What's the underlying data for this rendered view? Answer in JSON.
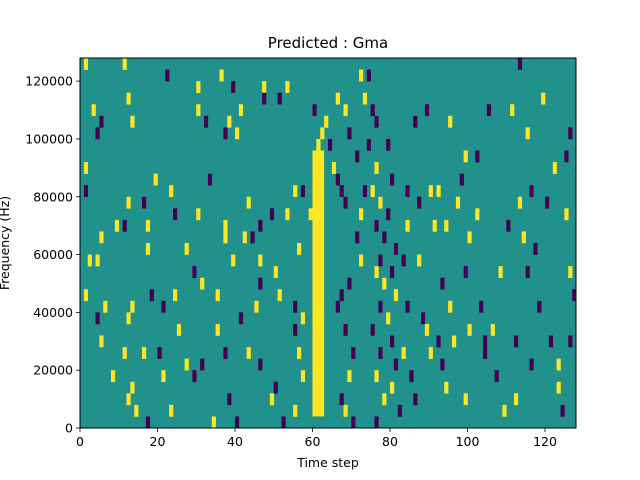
{
  "chart_data": {
    "type": "heatmap",
    "title": "Predicted : Gma",
    "xlabel": "Time step",
    "ylabel": "Frequency (Hz)",
    "xlim": [
      0,
      128
    ],
    "ylim": [
      0,
      128000
    ],
    "x_ticks": [
      0,
      20,
      40,
      60,
      80,
      100,
      120
    ],
    "x_tick_labels": [
      "0",
      "20",
      "40",
      "60",
      "80",
      "100",
      "120"
    ],
    "y_ticks": [
      0,
      20000,
      40000,
      60000,
      80000,
      100000,
      120000
    ],
    "y_tick_labels": [
      "0",
      "20000",
      "40000",
      "60000",
      "80000",
      "100000",
      "120000"
    ],
    "n_time_steps": 128,
    "n_frequency_bins": 32,
    "colormap": {
      "low": "#440154",
      "mid": "#21918c",
      "high": "#fde725"
    },
    "background_value": "mid",
    "grid": false,
    "cells": [
      {
        "x": 1,
        "y": 126000,
        "v": "high"
      },
      {
        "x": 11,
        "y": 126000,
        "v": "high"
      },
      {
        "x": 22,
        "y": 122000,
        "v": "low"
      },
      {
        "x": 36,
        "y": 122000,
        "v": "high"
      },
      {
        "x": 30,
        "y": 118000,
        "v": "high"
      },
      {
        "x": 39,
        "y": 118000,
        "v": "low"
      },
      {
        "x": 47,
        "y": 118000,
        "v": "high"
      },
      {
        "x": 12,
        "y": 114000,
        "v": "high"
      },
      {
        "x": 3,
        "y": 110000,
        "v": "high"
      },
      {
        "x": 5,
        "y": 106000,
        "v": "low"
      },
      {
        "x": 4,
        "y": 102000,
        "v": "low"
      },
      {
        "x": 13,
        "y": 106000,
        "v": "high"
      },
      {
        "x": 30,
        "y": 110000,
        "v": "high"
      },
      {
        "x": 32,
        "y": 106000,
        "v": "low"
      },
      {
        "x": 38,
        "y": 106000,
        "v": "high"
      },
      {
        "x": 41,
        "y": 110000,
        "v": "high"
      },
      {
        "x": 40,
        "y": 102000,
        "v": "high"
      },
      {
        "x": 37,
        "y": 102000,
        "v": "low"
      },
      {
        "x": 47,
        "y": 114000,
        "v": "low"
      },
      {
        "x": 51,
        "y": 114000,
        "v": "low"
      },
      {
        "x": 53,
        "y": 118000,
        "v": "high"
      },
      {
        "x": 1,
        "y": 90000,
        "v": "high"
      },
      {
        "x": 1,
        "y": 82000,
        "v": "low"
      },
      {
        "x": 12,
        "y": 78000,
        "v": "high"
      },
      {
        "x": 11,
        "y": 70000,
        "v": "low"
      },
      {
        "x": 5,
        "y": 66000,
        "v": "high"
      },
      {
        "x": 9,
        "y": 70000,
        "v": "high"
      },
      {
        "x": 17,
        "y": 70000,
        "v": "high"
      },
      {
        "x": 16,
        "y": 78000,
        "v": "low"
      },
      {
        "x": 23,
        "y": 82000,
        "v": "high"
      },
      {
        "x": 24,
        "y": 74000,
        "v": "low"
      },
      {
        "x": 19,
        "y": 86000,
        "v": "high"
      },
      {
        "x": 33,
        "y": 86000,
        "v": "low"
      },
      {
        "x": 30,
        "y": 74000,
        "v": "high"
      },
      {
        "x": 37,
        "y": 70000,
        "v": "high"
      },
      {
        "x": 43,
        "y": 78000,
        "v": "high"
      },
      {
        "x": 46,
        "y": 70000,
        "v": "low"
      },
      {
        "x": 49,
        "y": 74000,
        "v": "low"
      },
      {
        "x": 55,
        "y": 82000,
        "v": "high"
      },
      {
        "x": 53,
        "y": 74000,
        "v": "high"
      },
      {
        "x": 57,
        "y": 82000,
        "v": "low"
      },
      {
        "x": 59,
        "y": 74000,
        "v": "high"
      },
      {
        "x": 2,
        "y": 58000,
        "v": "high"
      },
      {
        "x": 4,
        "y": 58000,
        "v": "high"
      },
      {
        "x": 1,
        "y": 46000,
        "v": "high"
      },
      {
        "x": 4,
        "y": 38000,
        "v": "low"
      },
      {
        "x": 6,
        "y": 42000,
        "v": "high"
      },
      {
        "x": 12,
        "y": 38000,
        "v": "high"
      },
      {
        "x": 13,
        "y": 42000,
        "v": "high"
      },
      {
        "x": 17,
        "y": 62000,
        "v": "high"
      },
      {
        "x": 18,
        "y": 46000,
        "v": "low"
      },
      {
        "x": 21,
        "y": 42000,
        "v": "low"
      },
      {
        "x": 24,
        "y": 46000,
        "v": "high"
      },
      {
        "x": 27,
        "y": 62000,
        "v": "high"
      },
      {
        "x": 29,
        "y": 54000,
        "v": "low"
      },
      {
        "x": 31,
        "y": 50000,
        "v": "high"
      },
      {
        "x": 35,
        "y": 46000,
        "v": "high"
      },
      {
        "x": 37,
        "y": 66000,
        "v": "high"
      },
      {
        "x": 39,
        "y": 58000,
        "v": "high"
      },
      {
        "x": 42,
        "y": 66000,
        "v": "high"
      },
      {
        "x": 44,
        "y": 66000,
        "v": "low"
      },
      {
        "x": 46,
        "y": 58000,
        "v": "high"
      },
      {
        "x": 41,
        "y": 38000,
        "v": "low"
      },
      {
        "x": 45,
        "y": 42000,
        "v": "high"
      },
      {
        "x": 46,
        "y": 50000,
        "v": "low"
      },
      {
        "x": 50,
        "y": 54000,
        "v": "high"
      },
      {
        "x": 51,
        "y": 46000,
        "v": "high"
      },
      {
        "x": 56,
        "y": 62000,
        "v": "high"
      },
      {
        "x": 55,
        "y": 42000,
        "v": "low"
      },
      {
        "x": 57,
        "y": 38000,
        "v": "high"
      },
      {
        "x": 5,
        "y": 30000,
        "v": "high"
      },
      {
        "x": 11,
        "y": 26000,
        "v": "high"
      },
      {
        "x": 8,
        "y": 18000,
        "v": "high"
      },
      {
        "x": 13,
        "y": 14000,
        "v": "high"
      },
      {
        "x": 12,
        "y": 10000,
        "v": "high"
      },
      {
        "x": 14,
        "y": 6000,
        "v": "high"
      },
      {
        "x": 17,
        "y": 2000,
        "v": "low"
      },
      {
        "x": 16,
        "y": 26000,
        "v": "high"
      },
      {
        "x": 20,
        "y": 26000,
        "v": "low"
      },
      {
        "x": 21,
        "y": 18000,
        "v": "high"
      },
      {
        "x": 25,
        "y": 34000,
        "v": "high"
      },
      {
        "x": 27,
        "y": 22000,
        "v": "high"
      },
      {
        "x": 29,
        "y": 18000,
        "v": "low"
      },
      {
        "x": 31,
        "y": 22000,
        "v": "low"
      },
      {
        "x": 35,
        "y": 34000,
        "v": "high"
      },
      {
        "x": 37,
        "y": 26000,
        "v": "low"
      },
      {
        "x": 23,
        "y": 6000,
        "v": "high"
      },
      {
        "x": 34,
        "y": 2000,
        "v": "high"
      },
      {
        "x": 38,
        "y": 10000,
        "v": "low"
      },
      {
        "x": 43,
        "y": 26000,
        "v": "high"
      },
      {
        "x": 46,
        "y": 22000,
        "v": "low"
      },
      {
        "x": 49,
        "y": 10000,
        "v": "high"
      },
      {
        "x": 50,
        "y": 14000,
        "v": "low"
      },
      {
        "x": 55,
        "y": 34000,
        "v": "low"
      },
      {
        "x": 56,
        "y": 26000,
        "v": "high"
      },
      {
        "x": 52,
        "y": 2000,
        "v": "low"
      },
      {
        "x": 55,
        "y": 6000,
        "v": "high"
      },
      {
        "x": 57,
        "y": 18000,
        "v": "high"
      },
      {
        "x": 40,
        "y": 0,
        "v": "low"
      },
      {
        "x": 60,
        "y": 110000,
        "v": "low"
      },
      {
        "x": 62,
        "y": 102000,
        "v": "high"
      },
      {
        "x": 61,
        "y": 98000,
        "v": "high"
      },
      {
        "x": 63,
        "y": 106000,
        "v": "high"
      },
      {
        "x": 64,
        "y": 98000,
        "v": "low"
      },
      {
        "x": 65,
        "y": 90000,
        "v": "high"
      },
      {
        "x": 66,
        "y": 86000,
        "v": "low"
      },
      {
        "x": 67,
        "y": 82000,
        "v": "low"
      },
      {
        "x": 68,
        "y": 78000,
        "v": "low"
      },
      {
        "x": 66,
        "y": 114000,
        "v": "high"
      },
      {
        "x": 68,
        "y": 110000,
        "v": "high"
      },
      {
        "x": 69,
        "y": 102000,
        "v": "low"
      },
      {
        "x": 71,
        "y": 94000,
        "v": "low"
      },
      {
        "x": 73,
        "y": 82000,
        "v": "low"
      },
      {
        "x": 72,
        "y": 74000,
        "v": "high"
      },
      {
        "x": 71,
        "y": 66000,
        "v": "low"
      },
      {
        "x": 72,
        "y": 58000,
        "v": "high"
      },
      {
        "x": 69,
        "y": 50000,
        "v": "low"
      },
      {
        "x": 67,
        "y": 46000,
        "v": "low"
      },
      {
        "x": 66,
        "y": 42000,
        "v": "low"
      },
      {
        "x": 68,
        "y": 34000,
        "v": "low"
      },
      {
        "x": 70,
        "y": 26000,
        "v": "low"
      },
      {
        "x": 69,
        "y": 18000,
        "v": "high"
      },
      {
        "x": 67,
        "y": 10000,
        "v": "low"
      },
      {
        "x": 68,
        "y": 6000,
        "v": "high"
      },
      {
        "x": 70,
        "y": 2000,
        "v": "low"
      },
      {
        "x": 72,
        "y": 122000,
        "v": "high"
      },
      {
        "x": 74,
        "y": 122000,
        "v": "low"
      },
      {
        "x": 73,
        "y": 114000,
        "v": "high"
      },
      {
        "x": 75,
        "y": 110000,
        "v": "low"
      },
      {
        "x": 76,
        "y": 106000,
        "v": "low"
      },
      {
        "x": 74,
        "y": 98000,
        "v": "low"
      },
      {
        "x": 76,
        "y": 90000,
        "v": "high"
      },
      {
        "x": 75,
        "y": 82000,
        "v": "high"
      },
      {
        "x": 77,
        "y": 78000,
        "v": "high"
      },
      {
        "x": 76,
        "y": 70000,
        "v": "low"
      },
      {
        "x": 78,
        "y": 66000,
        "v": "low"
      },
      {
        "x": 77,
        "y": 58000,
        "v": "low"
      },
      {
        "x": 76,
        "y": 54000,
        "v": "high"
      },
      {
        "x": 78,
        "y": 50000,
        "v": "high"
      },
      {
        "x": 77,
        "y": 42000,
        "v": "low"
      },
      {
        "x": 75,
        "y": 34000,
        "v": "low"
      },
      {
        "x": 77,
        "y": 26000,
        "v": "low"
      },
      {
        "x": 76,
        "y": 18000,
        "v": "high"
      },
      {
        "x": 78,
        "y": 10000,
        "v": "high"
      },
      {
        "x": 76,
        "y": 2000,
        "v": "low"
      },
      {
        "x": 79,
        "y": 98000,
        "v": "low"
      },
      {
        "x": 80,
        "y": 86000,
        "v": "low"
      },
      {
        "x": 79,
        "y": 74000,
        "v": "low"
      },
      {
        "x": 81,
        "y": 62000,
        "v": "low"
      },
      {
        "x": 80,
        "y": 54000,
        "v": "low"
      },
      {
        "x": 81,
        "y": 46000,
        "v": "high"
      },
      {
        "x": 79,
        "y": 38000,
        "v": "high"
      },
      {
        "x": 80,
        "y": 30000,
        "v": "low"
      },
      {
        "x": 81,
        "y": 22000,
        "v": "low"
      },
      {
        "x": 80,
        "y": 14000,
        "v": "high"
      },
      {
        "x": 82,
        "y": 6000,
        "v": "low"
      },
      {
        "x": 84,
        "y": 82000,
        "v": "low"
      },
      {
        "x": 84,
        "y": 70000,
        "v": "high"
      },
      {
        "x": 83,
        "y": 58000,
        "v": "low"
      },
      {
        "x": 84,
        "y": 42000,
        "v": "low"
      },
      {
        "x": 83,
        "y": 26000,
        "v": "high"
      },
      {
        "x": 85,
        "y": 18000,
        "v": "low"
      },
      {
        "x": 86,
        "y": 106000,
        "v": "low"
      },
      {
        "x": 87,
        "y": 78000,
        "v": "low"
      },
      {
        "x": 87,
        "y": 58000,
        "v": "high"
      },
      {
        "x": 88,
        "y": 38000,
        "v": "low"
      },
      {
        "x": 86,
        "y": 10000,
        "v": "low"
      },
      {
        "x": 89,
        "y": 34000,
        "v": "high"
      },
      {
        "x": 90,
        "y": 82000,
        "v": "high"
      },
      {
        "x": 89,
        "y": 110000,
        "v": "low"
      },
      {
        "x": 91,
        "y": 70000,
        "v": "high"
      },
      {
        "x": 90,
        "y": 26000,
        "v": "high"
      },
      {
        "x": 92,
        "y": 82000,
        "v": "high"
      },
      {
        "x": 93,
        "y": 22000,
        "v": "low"
      },
      {
        "x": 95,
        "y": 106000,
        "v": "high"
      },
      {
        "x": 94,
        "y": 70000,
        "v": "high"
      },
      {
        "x": 93,
        "y": 50000,
        "v": "low"
      },
      {
        "x": 95,
        "y": 42000,
        "v": "high"
      },
      {
        "x": 96,
        "y": 30000,
        "v": "high"
      },
      {
        "x": 92,
        "y": 30000,
        "v": "low"
      },
      {
        "x": 94,
        "y": 14000,
        "v": "high"
      },
      {
        "x": 97,
        "y": 78000,
        "v": "high"
      },
      {
        "x": 98,
        "y": 86000,
        "v": "low"
      },
      {
        "x": 99,
        "y": 94000,
        "v": "high"
      },
      {
        "x": 99,
        "y": 54000,
        "v": "low"
      },
      {
        "x": 99,
        "y": 10000,
        "v": "high"
      },
      {
        "x": 100,
        "y": 66000,
        "v": "high"
      },
      {
        "x": 100,
        "y": 34000,
        "v": "high"
      },
      {
        "x": 102,
        "y": 94000,
        "v": "low"
      },
      {
        "x": 102,
        "y": 74000,
        "v": "high"
      },
      {
        "x": 103,
        "y": 42000,
        "v": "low"
      },
      {
        "x": 104,
        "y": 30000,
        "v": "low"
      },
      {
        "x": 104,
        "y": 26000,
        "v": "low"
      },
      {
        "x": 105,
        "y": 110000,
        "v": "low"
      },
      {
        "x": 106,
        "y": 34000,
        "v": "high"
      },
      {
        "x": 107,
        "y": 18000,
        "v": "low"
      },
      {
        "x": 108,
        "y": 54000,
        "v": "high"
      },
      {
        "x": 109,
        "y": 6000,
        "v": "high"
      },
      {
        "x": 110,
        "y": 70000,
        "v": "low"
      },
      {
        "x": 111,
        "y": 110000,
        "v": "high"
      },
      {
        "x": 112,
        "y": 30000,
        "v": "low"
      },
      {
        "x": 112,
        "y": 10000,
        "v": "high"
      },
      {
        "x": 113,
        "y": 126000,
        "v": "low"
      },
      {
        "x": 113,
        "y": 78000,
        "v": "high"
      },
      {
        "x": 114,
        "y": 66000,
        "v": "high"
      },
      {
        "x": 115,
        "y": 102000,
        "v": "high"
      },
      {
        "x": 115,
        "y": 54000,
        "v": "low"
      },
      {
        "x": 116,
        "y": 82000,
        "v": "low"
      },
      {
        "x": 116,
        "y": 22000,
        "v": "low"
      },
      {
        "x": 117,
        "y": 62000,
        "v": "low"
      },
      {
        "x": 118,
        "y": 42000,
        "v": "low"
      },
      {
        "x": 119,
        "y": 114000,
        "v": "high"
      },
      {
        "x": 120,
        "y": 78000,
        "v": "low"
      },
      {
        "x": 121,
        "y": 30000,
        "v": "low"
      },
      {
        "x": 122,
        "y": 90000,
        "v": "high"
      },
      {
        "x": 123,
        "y": 22000,
        "v": "high"
      },
      {
        "x": 123,
        "y": 14000,
        "v": "high"
      },
      {
        "x": 124,
        "y": 6000,
        "v": "low"
      },
      {
        "x": 125,
        "y": 94000,
        "v": "low"
      },
      {
        "x": 125,
        "y": 74000,
        "v": "high"
      },
      {
        "x": 126,
        "y": 54000,
        "v": "high"
      },
      {
        "x": 126,
        "y": 30000,
        "v": "low"
      },
      {
        "x": 126,
        "y": 102000,
        "v": "low"
      },
      {
        "x": 127,
        "y": 46000,
        "v": "low"
      }
    ],
    "high_band": {
      "x_range": [
        60,
        63
      ],
      "y_range": [
        4000,
        96000
      ],
      "v": "high"
    }
  }
}
